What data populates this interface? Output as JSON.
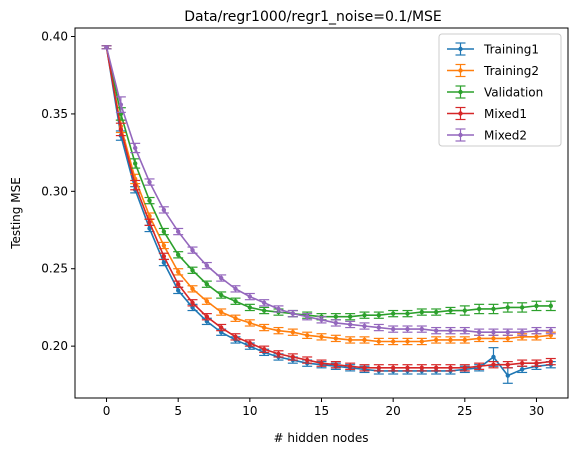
{
  "chart_data": {
    "type": "line",
    "title": "Data/regr1000/regr1_noise=0.1/MSE",
    "xlabel": "# hidden nodes",
    "ylabel": "Testing MSE",
    "xlim": [
      -2.2,
      32.2
    ],
    "ylim": [
      0.1665,
      0.4055
    ],
    "x_ticks": [
      0,
      5,
      10,
      15,
      20,
      25,
      30
    ],
    "y_ticks": [
      0.2,
      0.25,
      0.3,
      0.35,
      0.4
    ],
    "y_tick_labels": [
      "0.20",
      "0.25",
      "0.30",
      "0.35",
      "0.40"
    ],
    "legend_position": "top-right",
    "grid": false,
    "x": [
      0,
      1,
      2,
      3,
      4,
      5,
      6,
      7,
      8,
      9,
      10,
      11,
      12,
      13,
      14,
      15,
      16,
      17,
      18,
      19,
      20,
      21,
      22,
      23,
      24,
      25,
      26,
      27,
      28,
      29,
      30,
      31
    ],
    "series": [
      {
        "name": "Training1",
        "color": "#1f77b4",
        "values": [
          0.393,
          0.336,
          0.301,
          0.276,
          0.254,
          0.236,
          0.225,
          0.216,
          0.209,
          0.204,
          0.2,
          0.196,
          0.193,
          0.191,
          0.189,
          0.188,
          0.187,
          0.186,
          0.185,
          0.184,
          0.184,
          0.184,
          0.184,
          0.184,
          0.184,
          0.185,
          0.186,
          0.193,
          0.181,
          0.185,
          0.187,
          0.188
        ],
        "errors": [
          0.001,
          0.003,
          0.002,
          0.002,
          0.002,
          0.002,
          0.002,
          0.002,
          0.002,
          0.002,
          0.002,
          0.002,
          0.002,
          0.002,
          0.002,
          0.002,
          0.002,
          0.002,
          0.002,
          0.002,
          0.002,
          0.002,
          0.002,
          0.002,
          0.002,
          0.002,
          0.002,
          0.006,
          0.005,
          0.002,
          0.002,
          0.002
        ]
      },
      {
        "name": "Training2",
        "color": "#ff7f0e",
        "values": [
          0.393,
          0.342,
          0.308,
          0.284,
          0.265,
          0.248,
          0.237,
          0.229,
          0.222,
          0.218,
          0.215,
          0.212,
          0.21,
          0.209,
          0.207,
          0.206,
          0.205,
          0.204,
          0.204,
          0.203,
          0.203,
          0.203,
          0.203,
          0.204,
          0.204,
          0.204,
          0.205,
          0.205,
          0.205,
          0.206,
          0.206,
          0.207
        ],
        "errors": [
          0.001,
          0.004,
          0.003,
          0.002,
          0.002,
          0.002,
          0.002,
          0.002,
          0.002,
          0.002,
          0.002,
          0.002,
          0.002,
          0.002,
          0.002,
          0.002,
          0.002,
          0.002,
          0.002,
          0.002,
          0.002,
          0.002,
          0.002,
          0.002,
          0.002,
          0.002,
          0.002,
          0.002,
          0.002,
          0.002,
          0.002,
          0.002
        ]
      },
      {
        "name": "Validation",
        "color": "#2ca02c",
        "values": [
          0.393,
          0.35,
          0.318,
          0.294,
          0.274,
          0.259,
          0.249,
          0.24,
          0.233,
          0.229,
          0.225,
          0.223,
          0.222,
          0.221,
          0.22,
          0.219,
          0.219,
          0.219,
          0.22,
          0.22,
          0.221,
          0.221,
          0.222,
          0.222,
          0.223,
          0.223,
          0.224,
          0.224,
          0.225,
          0.225,
          0.226,
          0.226
        ],
        "errors": [
          0.001,
          0.004,
          0.003,
          0.002,
          0.002,
          0.002,
          0.002,
          0.002,
          0.002,
          0.002,
          0.002,
          0.002,
          0.002,
          0.002,
          0.002,
          0.002,
          0.002,
          0.002,
          0.002,
          0.002,
          0.002,
          0.002,
          0.002,
          0.002,
          0.002,
          0.003,
          0.003,
          0.003,
          0.003,
          0.003,
          0.003,
          0.003
        ]
      },
      {
        "name": "Mixed1",
        "color": "#d62728",
        "values": [
          0.393,
          0.34,
          0.304,
          0.28,
          0.258,
          0.24,
          0.228,
          0.219,
          0.212,
          0.206,
          0.202,
          0.198,
          0.195,
          0.193,
          0.191,
          0.189,
          0.188,
          0.187,
          0.186,
          0.186,
          0.186,
          0.186,
          0.186,
          0.186,
          0.186,
          0.186,
          0.187,
          0.188,
          0.188,
          0.189,
          0.189,
          0.19
        ],
        "errors": [
          0.001,
          0.004,
          0.003,
          0.002,
          0.002,
          0.002,
          0.002,
          0.002,
          0.002,
          0.002,
          0.002,
          0.002,
          0.002,
          0.002,
          0.002,
          0.002,
          0.002,
          0.002,
          0.002,
          0.002,
          0.002,
          0.002,
          0.002,
          0.002,
          0.002,
          0.002,
          0.002,
          0.002,
          0.002,
          0.002,
          0.002,
          0.002
        ]
      },
      {
        "name": "Mixed2",
        "color": "#9467bd",
        "values": [
          0.393,
          0.356,
          0.328,
          0.306,
          0.288,
          0.274,
          0.262,
          0.252,
          0.244,
          0.237,
          0.232,
          0.228,
          0.224,
          0.221,
          0.219,
          0.217,
          0.215,
          0.214,
          0.213,
          0.212,
          0.211,
          0.211,
          0.211,
          0.21,
          0.21,
          0.21,
          0.209,
          0.209,
          0.209,
          0.209,
          0.21,
          0.21
        ],
        "errors": [
          0.001,
          0.005,
          0.003,
          0.002,
          0.002,
          0.002,
          0.002,
          0.002,
          0.002,
          0.002,
          0.002,
          0.002,
          0.002,
          0.002,
          0.002,
          0.002,
          0.002,
          0.002,
          0.002,
          0.002,
          0.002,
          0.002,
          0.002,
          0.002,
          0.002,
          0.002,
          0.002,
          0.002,
          0.002,
          0.002,
          0.002,
          0.002
        ]
      }
    ]
  }
}
